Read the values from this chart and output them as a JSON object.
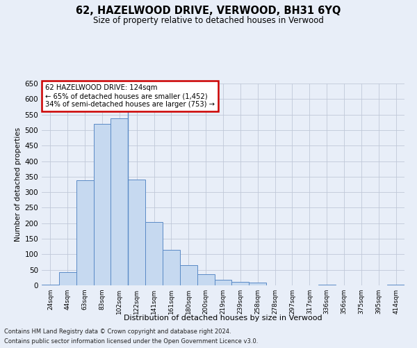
{
  "title": "62, HAZELWOOD DRIVE, VERWOOD, BH31 6YQ",
  "subtitle": "Size of property relative to detached houses in Verwood",
  "xlabel": "Distribution of detached houses by size in Verwood",
  "ylabel": "Number of detached properties",
  "categories": [
    "24sqm",
    "44sqm",
    "63sqm",
    "83sqm",
    "102sqm",
    "122sqm",
    "141sqm",
    "161sqm",
    "180sqm",
    "200sqm",
    "219sqm",
    "239sqm",
    "258sqm",
    "278sqm",
    "297sqm",
    "317sqm",
    "336sqm",
    "356sqm",
    "375sqm",
    "395sqm",
    "414sqm"
  ],
  "values": [
    3,
    42,
    338,
    520,
    538,
    340,
    203,
    115,
    65,
    35,
    18,
    12,
    10,
    0,
    0,
    0,
    3,
    0,
    0,
    0,
    2
  ],
  "bar_color": "#c6d9f0",
  "bar_edge_color": "#5a8ac6",
  "ylim": [
    0,
    650
  ],
  "yticks": [
    0,
    50,
    100,
    150,
    200,
    250,
    300,
    350,
    400,
    450,
    500,
    550,
    600,
    650
  ],
  "grid_color": "#c0c8d8",
  "annotation_title": "62 HAZELWOOD DRIVE: 124sqm",
  "annotation_line1": "← 65% of detached houses are smaller (1,452)",
  "annotation_line2": "34% of semi-detached houses are larger (753) →",
  "annotation_box_color": "#ffffff",
  "annotation_box_edge_color": "#cc0000",
  "vline_bar_index": 4,
  "footer1": "Contains HM Land Registry data © Crown copyright and database right 2024.",
  "footer2": "Contains public sector information licensed under the Open Government Licence v3.0.",
  "background_color": "#e8eef8"
}
